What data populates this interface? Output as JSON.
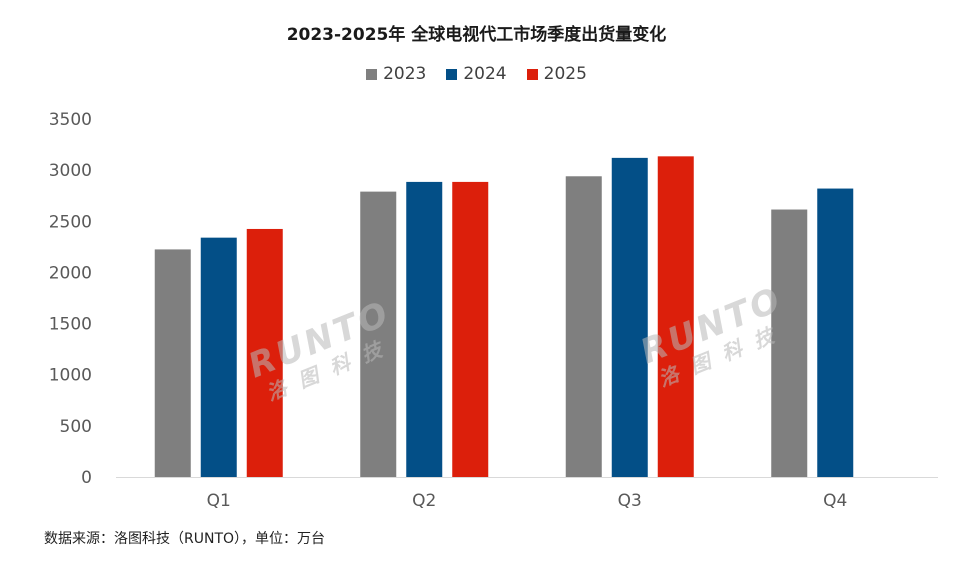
{
  "chart_data": {
    "type": "bar",
    "title": "2023-2025年 全球电视代工市场季度出货量变化",
    "categories": [
      "Q1",
      "Q2",
      "Q3",
      "Q4"
    ],
    "series": [
      {
        "name": "2023",
        "color": "#7f7f7f",
        "values": [
          2225,
          2790,
          2940,
          2615
        ]
      },
      {
        "name": "2024",
        "color": "#034f87",
        "values": [
          2340,
          2885,
          3120,
          2820
        ]
      },
      {
        "name": "2025",
        "color": "#dc1f0b",
        "values": [
          2425,
          2885,
          3135,
          null
        ]
      }
    ],
    "ylim": [
      0,
      3500
    ],
    "yticks": [
      "0",
      "500",
      "1000",
      "1500",
      "2000",
      "2500",
      "3000",
      "3500"
    ],
    "grid": false,
    "legend_position": "top-center"
  },
  "source_note": "数据来源：洛图科技（RUNTO），单位：万台",
  "watermark": {
    "en": "RUNTO",
    "cn": "洛图科技"
  }
}
